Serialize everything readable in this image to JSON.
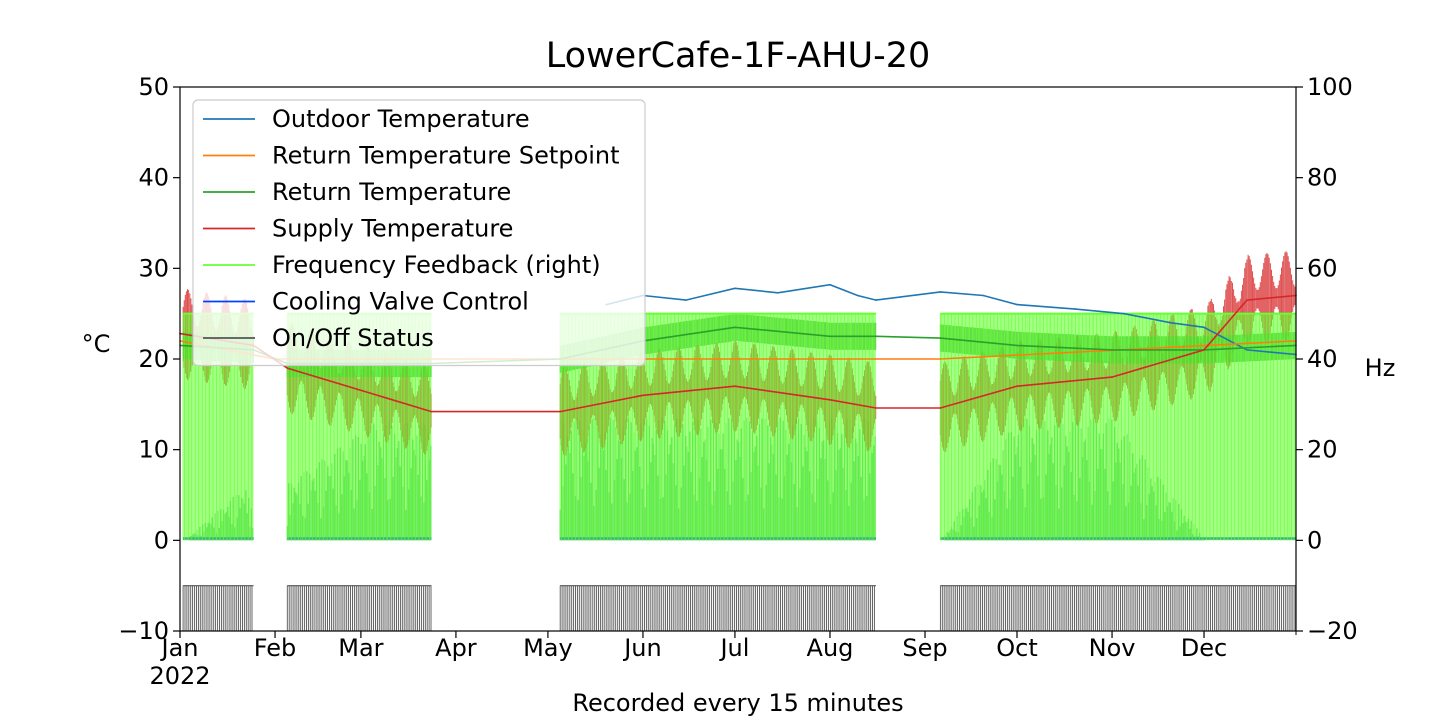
{
  "chart_data": {
    "type": "line",
    "title": "LowerCafe-1F-AHU-20",
    "xlabel": "Recorded every 15 minutes",
    "ylabel_left": "°C",
    "ylabel_right": "Hz",
    "ylim_left": [
      -10,
      50
    ],
    "ylim_right": [
      -20,
      100
    ],
    "yticks_left": [
      -10,
      0,
      10,
      20,
      30,
      40,
      50
    ],
    "yticks_left_labels": [
      "−10",
      "0",
      "10",
      "20",
      "30",
      "40",
      "50"
    ],
    "yticks_right": [
      -20,
      0,
      20,
      40,
      60,
      80,
      100
    ],
    "yticks_right_labels": [
      "−20",
      "0",
      "20",
      "40",
      "60",
      "80",
      "100"
    ],
    "xlim": [
      "2022-01-01",
      "2022-12-31"
    ],
    "xticks": [
      {
        "date": "2022-01-01",
        "label": "Jan",
        "sublabel": "2022"
      },
      {
        "date": "2022-02-01",
        "label": "Feb"
      },
      {
        "date": "2022-03-01",
        "label": "Mar"
      },
      {
        "date": "2022-04-01",
        "label": "Apr"
      },
      {
        "date": "2022-05-01",
        "label": "May"
      },
      {
        "date": "2022-06-01",
        "label": "Jun"
      },
      {
        "date": "2022-07-01",
        "label": "Jul"
      },
      {
        "date": "2022-08-01",
        "label": "Aug"
      },
      {
        "date": "2022-09-01",
        "label": "Sep"
      },
      {
        "date": "2022-10-01",
        "label": "Oct"
      },
      {
        "date": "2022-11-01",
        "label": "Nov"
      },
      {
        "date": "2022-12-01",
        "label": "Dec"
      }
    ],
    "grid": false,
    "legend_position": "top-left",
    "series": [
      {
        "name": "Outdoor Temperature",
        "color": "#1f77b4",
        "axis": "left",
        "x": [
          "2022-05-20",
          "2022-06-01",
          "2022-06-15",
          "2022-07-01",
          "2022-07-15",
          "2022-08-01",
          "2022-08-10",
          "2022-08-16",
          "2022-09-06",
          "2022-09-20",
          "2022-10-01",
          "2022-10-20",
          "2022-11-05",
          "2022-11-20",
          "2022-12-01",
          "2022-12-15",
          "2022-12-31"
        ],
        "y": [
          26.0,
          27.0,
          26.5,
          27.8,
          27.3,
          28.2,
          27.0,
          26.5,
          27.4,
          27.0,
          26.0,
          25.5,
          25.0,
          24.0,
          23.5,
          21.0,
          20.5
        ]
      },
      {
        "name": "Return Temperature Setpoint",
        "color": "#ff7f0e",
        "axis": "left",
        "x": [
          "2022-01-01",
          "2022-02-01",
          "2022-03-24",
          "2022-05-05",
          "2022-08-16",
          "2022-09-06",
          "2022-12-31"
        ],
        "y": [
          22.0,
          20.0,
          20.0,
          20.0,
          20.0,
          20.0,
          22.0
        ]
      },
      {
        "name": "Return Temperature",
        "color": "#2ca02c",
        "axis": "left",
        "x": [
          "2022-01-01",
          "2022-01-25",
          "2022-02-05",
          "2022-03-24",
          "2022-05-05",
          "2022-06-01",
          "2022-07-01",
          "2022-08-01",
          "2022-08-16",
          "2022-09-06",
          "2022-10-01",
          "2022-11-01",
          "2022-12-01",
          "2022-12-31"
        ],
        "y": [
          21.5,
          21.0,
          19.5,
          19.5,
          20.0,
          22.0,
          23.5,
          22.5,
          22.5,
          22.3,
          21.5,
          21.0,
          21.0,
          21.5
        ]
      },
      {
        "name": "Supply Temperature",
        "color": "#d62728",
        "axis": "left",
        "x": [
          "2022-01-01",
          "2022-01-25",
          "2022-02-05",
          "2022-03-24",
          "2022-05-05",
          "2022-06-01",
          "2022-07-01",
          "2022-08-01",
          "2022-08-16",
          "2022-09-06",
          "2022-10-01",
          "2022-11-01",
          "2022-12-01",
          "2022-12-15",
          "2022-12-31"
        ],
        "y": [
          22.8,
          21.5,
          19.0,
          14.2,
          14.2,
          16.0,
          17.0,
          15.5,
          14.6,
          14.6,
          17.0,
          18.0,
          21.0,
          26.5,
          27.0
        ]
      },
      {
        "name": "Frequency Feedback (right)",
        "color": "#66ff33",
        "axis": "right",
        "x": [
          "2022-01-02",
          "2022-01-25",
          "2022-02-05",
          "2022-03-24",
          "2022-05-05",
          "2022-08-16",
          "2022-09-06",
          "2022-12-31"
        ],
        "y": [
          50,
          50,
          50,
          50,
          50,
          50,
          50,
          50
        ]
      },
      {
        "name": "Cooling Valve Control",
        "color": "#0043ff",
        "axis": "left",
        "x": [
          "2022-01-02",
          "2022-01-22",
          "2022-01-24",
          "2022-03-05",
          "2022-03-24",
          "2022-05-05",
          "2022-06-01",
          "2022-07-01",
          "2022-08-16",
          "2022-09-06",
          "2022-10-01",
          "2022-11-01",
          "2022-12-01",
          "2022-12-31"
        ],
        "y": [
          0,
          6,
          3.5,
          13,
          13,
          13.5,
          13.5,
          13.5,
          13.5,
          0,
          13.5,
          13.5,
          0,
          0
        ]
      },
      {
        "name": "On/Off Status",
        "color": "#555555",
        "axis": "left",
        "x": [
          "2022-01-02",
          "2022-01-25",
          "2022-02-05",
          "2022-03-24",
          "2022-05-05",
          "2022-08-16",
          "2022-09-06",
          "2022-12-31"
        ],
        "y": [
          -5,
          -5,
          -5,
          -5,
          -5,
          -5,
          -5,
          -5
        ]
      }
    ]
  }
}
